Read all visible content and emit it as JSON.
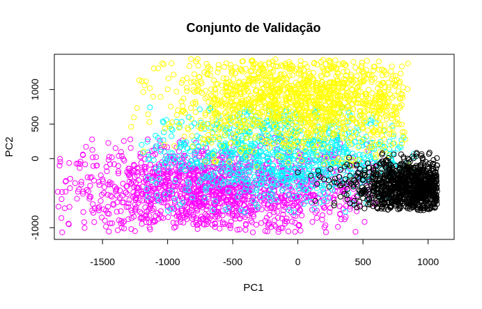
{
  "chart_data": {
    "type": "scatter",
    "title": "Conjunto de Validação",
    "xlabel": "PC1",
    "ylabel": "PC2",
    "xlim": [
      -1870,
      1200
    ],
    "ylim": [
      -1170,
      1510
    ],
    "x_ticks": [
      -1500,
      -1000,
      -500,
      0,
      500,
      1000
    ],
    "x_tick_labels": [
      "-1500",
      "-1000",
      "-500",
      "0",
      "500",
      "1000"
    ],
    "y_ticks": [
      -1000,
      0,
      500,
      1000
    ],
    "y_tick_labels": [
      "-1000",
      "0",
      "500",
      "1000"
    ],
    "marker": "open-circle",
    "legend": "none",
    "grid": false,
    "series": [
      {
        "color": "#FF00FF",
        "approx_points": 1400,
        "x_range": [
          -1850,
          600
        ],
        "y_range": [
          -1070,
          310
        ],
        "center": [
          -650,
          -460
        ],
        "sample_points": [
          [
            -1830,
            -100
          ],
          [
            -1790,
            -720
          ],
          [
            -1650,
            50
          ],
          [
            -1640,
            -920
          ],
          [
            -1600,
            -550
          ],
          [
            -1500,
            -300
          ],
          [
            -1450,
            -800
          ],
          [
            -1400,
            150
          ],
          [
            -1300,
            -650
          ],
          [
            -1250,
            -1050
          ],
          [
            -1150,
            -300
          ],
          [
            -1100,
            -900
          ],
          [
            -1000,
            -500
          ],
          [
            -950,
            -1000
          ],
          [
            -900,
            -200
          ],
          [
            -800,
            -700
          ],
          [
            -750,
            -350
          ],
          [
            -700,
            -950
          ],
          [
            -600,
            -450
          ],
          [
            -500,
            -800
          ],
          [
            -450,
            -100
          ],
          [
            -350,
            -600
          ],
          [
            -250,
            -900
          ],
          [
            -200,
            -300
          ],
          [
            -100,
            -550
          ],
          [
            0,
            -700
          ],
          [
            100,
            -400
          ],
          [
            200,
            -600
          ],
          [
            350,
            -450
          ],
          [
            450,
            -650
          ],
          [
            550,
            -550
          ]
        ]
      },
      {
        "color": "#00FFFF",
        "approx_points": 900,
        "x_range": [
          -1200,
          900
        ],
        "y_range": [
          -800,
          750
        ],
        "center": [
          -150,
          50
        ],
        "sample_points": [
          [
            -1200,
            200
          ],
          [
            -1000,
            0
          ],
          [
            -900,
            -150
          ],
          [
            -850,
            150
          ],
          [
            -750,
            300
          ],
          [
            -700,
            -50
          ],
          [
            -600,
            200
          ],
          [
            -500,
            50
          ],
          [
            -450,
            -200
          ],
          [
            -400,
            350
          ],
          [
            -300,
            100
          ],
          [
            -250,
            -300
          ],
          [
            -200,
            550
          ],
          [
            -100,
            0
          ],
          [
            0,
            250
          ],
          [
            50,
            -250
          ],
          [
            150,
            100
          ],
          [
            250,
            -100
          ],
          [
            300,
            400
          ],
          [
            400,
            -150
          ],
          [
            500,
            50
          ],
          [
            600,
            -200
          ],
          [
            700,
            -300
          ],
          [
            800,
            -150
          ],
          [
            880,
            -350
          ]
        ]
      },
      {
        "color": "#FFFF00",
        "approx_points": 1300,
        "x_range": [
          -1300,
          850
        ],
        "y_range": [
          -150,
          1440
        ],
        "center": [
          50,
          850
        ],
        "sample_points": [
          [
            -1280,
            460
          ],
          [
            -1150,
            640
          ],
          [
            -820,
            1440
          ],
          [
            -770,
            1440
          ],
          [
            -650,
            900
          ],
          [
            -550,
            1100
          ],
          [
            -500,
            700
          ],
          [
            -400,
            1300
          ],
          [
            -350,
            1420
          ],
          [
            -300,
            850
          ],
          [
            -250,
            1150
          ],
          [
            -200,
            600
          ],
          [
            -100,
            1000
          ],
          [
            -50,
            1350
          ],
          [
            0,
            800
          ],
          [
            50,
            1200
          ],
          [
            100,
            500
          ],
          [
            150,
            950
          ],
          [
            200,
            300
          ],
          [
            250,
            1100
          ],
          [
            300,
            650
          ],
          [
            400,
            200
          ],
          [
            500,
            450
          ],
          [
            600,
            200
          ],
          [
            700,
            50
          ],
          [
            800,
            220
          ],
          [
            850,
            -100
          ]
        ]
      },
      {
        "color": "#000000",
        "approx_points": 1000,
        "x_range": [
          0,
          1070
        ],
        "y_range": [
          -750,
          100
        ],
        "center": [
          930,
          -420
        ],
        "sample_points": [
          [
            0,
            -200
          ],
          [
            100,
            -250
          ],
          [
            200,
            -300
          ],
          [
            250,
            -150
          ],
          [
            300,
            -350
          ],
          [
            400,
            -250
          ],
          [
            450,
            -100
          ],
          [
            500,
            -300
          ],
          [
            550,
            -200
          ],
          [
            600,
            -450
          ],
          [
            650,
            -350
          ],
          [
            700,
            -250
          ],
          [
            750,
            -500
          ],
          [
            800,
            -400
          ],
          [
            850,
            -300
          ],
          [
            880,
            -650
          ],
          [
            900,
            -450
          ],
          [
            950,
            -200
          ],
          [
            980,
            -550
          ],
          [
            1000,
            -350
          ],
          [
            1050,
            -400
          ],
          [
            1070,
            -100
          ]
        ]
      }
    ]
  }
}
